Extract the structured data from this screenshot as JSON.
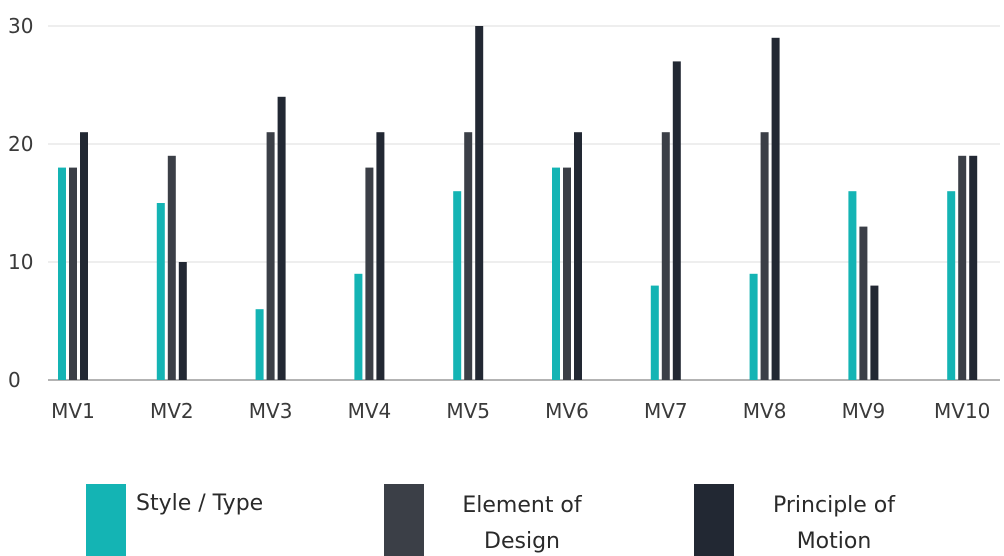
{
  "chart_data": {
    "type": "bar",
    "categories": [
      "MV1",
      "MV2",
      "MV3",
      "MV4",
      "MV5",
      "MV6",
      "MV7",
      "MV8",
      "MV9",
      "MV10"
    ],
    "series": [
      {
        "name": "Style / Type",
        "color": "#14b4b4",
        "values": [
          18,
          15,
          6,
          9,
          16,
          18,
          8,
          9,
          16,
          16
        ]
      },
      {
        "name": "Element of Design",
        "color": "#3b3f47",
        "values": [
          18,
          19,
          21,
          18,
          21,
          18,
          21,
          21,
          13,
          19
        ]
      },
      {
        "name": "Principle of Motion",
        "color": "#222833",
        "values": [
          21,
          10,
          24,
          21,
          30,
          21,
          27,
          29,
          8,
          19
        ]
      }
    ],
    "yticks": [
      0,
      10,
      20,
      30
    ],
    "ylim": [
      0,
      30
    ],
    "grid": true,
    "legend_position": "bottom",
    "legend": [
      {
        "line1": "Style / Type",
        "line2": ""
      },
      {
        "line1": "Element of",
        "line2": "Design"
      },
      {
        "line1": "Principle of",
        "line2": "Motion"
      }
    ]
  }
}
